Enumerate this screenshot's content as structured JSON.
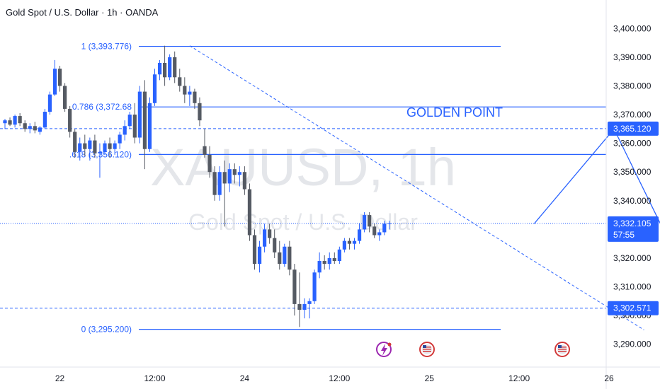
{
  "header": {
    "title": "Gold Spot / U.S. Dollar · 1h · OANDA"
  },
  "watermark": {
    "symbol": "XAUUSD, 1h",
    "description": "Gold Spot / U.S. Dollar"
  },
  "annotation": {
    "label": "GOLDEN POINT"
  },
  "colors": {
    "up": "#2962ff",
    "down": "#555a63",
    "accent": "#2962ff"
  },
  "chart_data": {
    "type": "candlestick",
    "timeframe": "1h",
    "yaxis": {
      "range": [
        3285,
        3405
      ],
      "ticks": [
        3290,
        3300,
        3310,
        3320,
        3330,
        3340,
        3350,
        3360,
        3370,
        3380,
        3390,
        3400
      ],
      "tick_labels": [
        "3,290.000",
        "3,300.000",
        "3,310.000",
        "3,320.000",
        "3,330.000",
        "3,340.000",
        "3,350.000",
        "3,360.000",
        "3,370.000",
        "3,380.000",
        "3,390.000",
        "3,400.000"
      ]
    },
    "xaxis": {
      "range": [
        0,
        135
      ],
      "ticks": [
        {
          "bar": 11,
          "label": "22"
        },
        {
          "bar": 30,
          "label": "12:00"
        },
        {
          "bar": 48,
          "label": "24"
        },
        {
          "bar": 67,
          "label": "12:00"
        },
        {
          "bar": 85,
          "label": "25"
        },
        {
          "bar": 103,
          "label": "12:00"
        },
        {
          "bar": 121,
          "label": "26"
        },
        {
          "bar": 140,
          "label": "12:00"
        }
      ]
    },
    "candles": [
      [
        3367.0,
        3368.5,
        3365.0,
        3368.0
      ],
      [
        3368.0,
        3369.0,
        3366.0,
        3366.5
      ],
      [
        3366.5,
        3370.0,
        3365.5,
        3369.5
      ],
      [
        3369.5,
        3370.5,
        3366.0,
        3367.0
      ],
      [
        3367.0,
        3368.0,
        3364.0,
        3365.0
      ],
      [
        3365.0,
        3367.0,
        3363.5,
        3366.0
      ],
      [
        3366.0,
        3367.5,
        3363.5,
        3364.5
      ],
      [
        3364.0,
        3366.0,
        3363.0,
        3365.5
      ],
      [
        3365.5,
        3372.0,
        3365.0,
        3371.0
      ],
      [
        3371.0,
        3378.0,
        3370.0,
        3377.0
      ],
      [
        3377.0,
        3389.0,
        3376.5,
        3386.0
      ],
      [
        3386.0,
        3387.0,
        3378.0,
        3380.0
      ],
      [
        3380.0,
        3381.0,
        3371.0,
        3372.0
      ],
      [
        3372.0,
        3373.0,
        3362.0,
        3364.0
      ],
      [
        3364.0,
        3365.0,
        3355.0,
        3357.0
      ],
      [
        3357.0,
        3362.0,
        3354.0,
        3360.0
      ],
      [
        3360.0,
        3363.0,
        3355.5,
        3358.0
      ],
      [
        3358.0,
        3362.0,
        3354.0,
        3361.0
      ],
      [
        3361.0,
        3363.0,
        3355.0,
        3356.5
      ],
      [
        3356.5,
        3360.0,
        3348.0,
        3357.0
      ],
      [
        3357.0,
        3361.0,
        3356.0,
        3360.0
      ],
      [
        3360.0,
        3362.0,
        3355.0,
        3358.0
      ],
      [
        3358.0,
        3361.0,
        3356.0,
        3360.0
      ],
      [
        3360.0,
        3364.0,
        3358.0,
        3363.0
      ],
      [
        3363.0,
        3368.0,
        3361.0,
        3366.0
      ],
      [
        3366.0,
        3371.0,
        3365.0,
        3370.0
      ],
      [
        3370.0,
        3374.0,
        3360.0,
        3362.0
      ],
      [
        3362.0,
        3380.0,
        3360.0,
        3378.0
      ],
      [
        3378.0,
        3382.0,
        3351.0,
        3358.0
      ],
      [
        3358.0,
        3376.0,
        3357.0,
        3374.0
      ],
      [
        3374.0,
        3386.0,
        3373.0,
        3384.0
      ],
      [
        3384.0,
        3389.0,
        3382.0,
        3388.0
      ],
      [
        3388.0,
        3394.0,
        3380.0,
        3383.0
      ],
      [
        3383.0,
        3391.0,
        3382.0,
        3390.0
      ],
      [
        3390.0,
        3392.0,
        3381.0,
        3383.0
      ],
      [
        3383.0,
        3386.0,
        3378.0,
        3380.0
      ],
      [
        3380.0,
        3383.0,
        3374.0,
        3377.0
      ],
      [
        3377.0,
        3380.0,
        3373.0,
        3378.0
      ],
      [
        3378.0,
        3379.0,
        3372.0,
        3374.0
      ],
      [
        3374.0,
        3376.0,
        3366.0,
        3368.0
      ],
      [
        3359.0,
        3365.0,
        3355.0,
        3356.0
      ],
      [
        3356.0,
        3359.0,
        3348.0,
        3350.0
      ],
      [
        3350.0,
        3352.0,
        3340.0,
        3342.0
      ],
      [
        3342.0,
        3352.0,
        3340.0,
        3350.0
      ],
      [
        3350.0,
        3354.0,
        3331.0,
        3346.0
      ],
      [
        3346.0,
        3353.0,
        3343.0,
        3351.0
      ],
      [
        3351.0,
        3353.0,
        3346.0,
        3349.0
      ],
      [
        3349.0,
        3352.0,
        3345.0,
        3350.0
      ],
      [
        3350.0,
        3352.0,
        3342.0,
        3344.0
      ],
      [
        3344.0,
        3346.0,
        3326.0,
        3328.0
      ],
      [
        3328.0,
        3330.0,
        3316.0,
        3318.0
      ],
      [
        3318.0,
        3326.0,
        3315.0,
        3324.0
      ],
      [
        3324.0,
        3332.0,
        3322.0,
        3330.0
      ],
      [
        3330.0,
        3332.0,
        3325.0,
        3327.0
      ],
      [
        3327.0,
        3330.0,
        3320.0,
        3322.0
      ],
      [
        3322.0,
        3326.0,
        3316.0,
        3318.0
      ],
      [
        3318.0,
        3325.0,
        3317.0,
        3324.0
      ],
      [
        3324.0,
        3326.0,
        3314.0,
        3316.0
      ],
      [
        3316.0,
        3318.0,
        3300.0,
        3304.0
      ],
      [
        3304.0,
        3315.0,
        3296.0,
        3302.0
      ],
      [
        3302.0,
        3306.0,
        3299.0,
        3304.0
      ],
      [
        3304.0,
        3306.0,
        3299.0,
        3305.0
      ],
      [
        3305.0,
        3316.0,
        3304.0,
        3315.0
      ],
      [
        3315.0,
        3322.0,
        3313.0,
        3319.0
      ],
      [
        3319.0,
        3321.0,
        3316.0,
        3318.0
      ],
      [
        3318.0,
        3322.0,
        3316.0,
        3320.0
      ],
      [
        3320.0,
        3322.0,
        3318.0,
        3319.0
      ],
      [
        3319.0,
        3324.0,
        3318.0,
        3323.0
      ],
      [
        3323.0,
        3327.0,
        3322.0,
        3326.0
      ],
      [
        3326.0,
        3327.0,
        3323.0,
        3325.0
      ],
      [
        3325.0,
        3327.0,
        3323.0,
        3326.0
      ],
      [
        3326.0,
        3332.0,
        3325.0,
        3330.0
      ],
      [
        3330.0,
        3336.0,
        3329.0,
        3335.0
      ],
      [
        3335.0,
        3336.0,
        3329.0,
        3331.0
      ],
      [
        3331.0,
        3332.0,
        3327.0,
        3328.0
      ],
      [
        3328.0,
        3330.0,
        3326.0,
        3329.0
      ],
      [
        3329.0,
        3333.0,
        3328.0,
        3332.0
      ],
      [
        3332.0,
        3333.0,
        3330.0,
        3332.1
      ]
    ],
    "fib_levels": [
      {
        "label": "1 (3,393.776)",
        "value": 3393.776
      },
      {
        "label": "0.786 (3,372.68",
        "value": 3372.68
      },
      {
        "label": ".618 (3,356.120)",
        "value": 3356.12
      },
      {
        "label": "0 (3,295.200)",
        "value": 3295.2
      }
    ],
    "horizontal_levels": [
      {
        "label": "3,365.120",
        "value": 3365.12
      },
      {
        "label": "3,302.571",
        "value": 3302.571
      }
    ],
    "current_price": {
      "label": "3,332.105",
      "value": 3332.105,
      "countdown": "57:55"
    },
    "projection_path": [
      {
        "bar": 106,
        "price": 3332
      },
      {
        "bar": 122,
        "price": 3365
      },
      {
        "bar": 140,
        "price": 3301
      }
    ],
    "trend_line": [
      {
        "bar": 37,
        "price": 3394
      },
      {
        "bar": 128,
        "price": 3295
      }
    ]
  }
}
